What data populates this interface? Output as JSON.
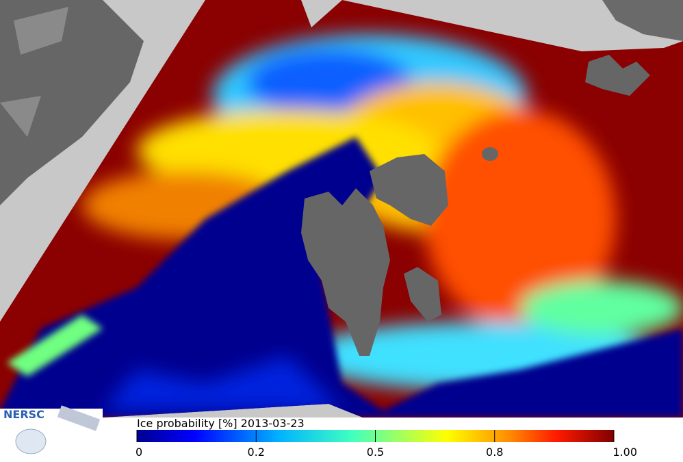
{
  "logo": {
    "text": "NERSC"
  },
  "colorbar": {
    "label": "Ice probability [%] 2013-03-23",
    "ticks": [
      "0",
      "0.2",
      "0.5",
      "0.8",
      "1.00"
    ]
  }
}
